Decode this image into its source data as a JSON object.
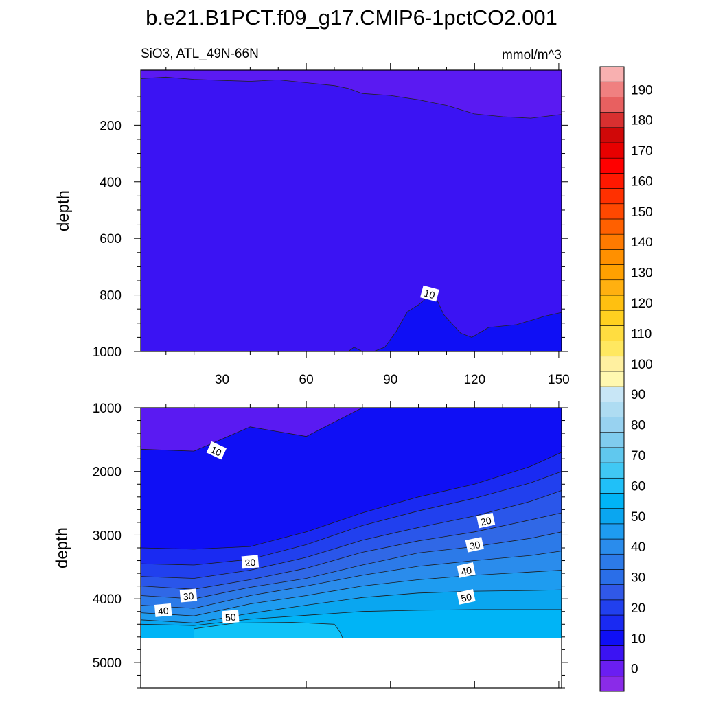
{
  "chart_data": [
    {
      "type": "contour",
      "panel": "upper",
      "title": "b.e21.B1PCT.f09_g17.CMIP6-1pctCO2.001",
      "left_label": "SiO3, ATL_49N-66N",
      "right_label": "mmol/m^3",
      "xlabel": "",
      "ylabel": "depth",
      "xlim": [
        1,
        151
      ],
      "ylim": [
        1000,
        5
      ],
      "x_ticks": [
        30,
        60,
        90,
        120,
        150
      ],
      "y_ticks": [
        200,
        400,
        600,
        800,
        1000
      ],
      "contour_labels": [
        {
          "text": "10",
          "x": 104,
          "y": 795
        }
      ],
      "regions": [
        {
          "level": "0-5",
          "color": "#5a1af2",
          "boundary_depth_by_x": [
            [
              1,
              35
            ],
            [
              10,
              30
            ],
            [
              20,
              38
            ],
            [
              30,
              42
            ],
            [
              40,
              45
            ],
            [
              50,
              40
            ],
            [
              60,
              50
            ],
            [
              70,
              60
            ],
            [
              75,
              70
            ],
            [
              80,
              88
            ],
            [
              90,
              95
            ],
            [
              100,
              110
            ],
            [
              110,
              130
            ],
            [
              120,
              160
            ],
            [
              130,
              170
            ],
            [
              140,
              175
            ],
            [
              151,
              162
            ]
          ]
        },
        {
          "level": "5-10",
          "color": "#3b13f3"
        },
        {
          "level": "10-15",
          "color": "#0f0ff5",
          "boundary_depth_by_x": [
            [
              75,
              1000
            ],
            [
              77,
              985
            ],
            [
              80,
              1000
            ],
            [
              84,
              1000
            ],
            [
              88,
              985
            ],
            [
              92,
              930
            ],
            [
              96,
              860
            ],
            [
              100,
              835
            ],
            [
              103,
              810
            ],
            [
              106,
              805
            ],
            [
              109,
              870
            ],
            [
              115,
              935
            ],
            [
              119,
              950
            ],
            [
              125,
              915
            ],
            [
              135,
              905
            ],
            [
              140,
              890
            ],
            [
              145,
              875
            ],
            [
              151,
              862
            ]
          ]
        }
      ]
    },
    {
      "type": "contour",
      "panel": "lower",
      "xlabel": "",
      "ylabel": "depth",
      "xlim": [
        1,
        151
      ],
      "ylim": [
        5400,
        1000
      ],
      "y_ticks": [
        1000,
        2000,
        3000,
        4000,
        5000
      ],
      "missing_below": 4620,
      "contour_labels": [
        {
          "text": "10",
          "x": 28,
          "y": 1670
        },
        {
          "text": "20",
          "x": 124,
          "y": 2770
        },
        {
          "text": "30",
          "x": 120,
          "y": 3150
        },
        {
          "text": "40",
          "x": 117,
          "y": 3550
        },
        {
          "text": "50",
          "x": 117,
          "y": 3970
        },
        {
          "text": "20",
          "x": 40,
          "y": 3420
        },
        {
          "text": "30",
          "x": 18,
          "y": 3950
        },
        {
          "text": "40",
          "x": 9,
          "y": 4180
        },
        {
          "text": "50",
          "x": 33,
          "y": 4280
        }
      ],
      "x_stops": [
        1,
        20,
        40,
        60,
        80,
        100,
        120,
        140,
        151
      ],
      "contours": [
        {
          "level": 10,
          "depths": [
            1650,
            1680,
            1300,
            1450,
            1000,
            1000,
            1000,
            1000,
            1000
          ]
        },
        {
          "level": 15,
          "depths": [
            3200,
            3220,
            3180,
            2950,
            2650,
            2400,
            2200,
            1920,
            1700
          ]
        },
        {
          "level": 20,
          "depths": [
            3450,
            3470,
            3380,
            3150,
            2850,
            2620,
            2420,
            2180,
            2000
          ]
        },
        {
          "level": 25,
          "depths": [
            3650,
            3680,
            3550,
            3350,
            3080,
            2880,
            2700,
            2470,
            2300
          ]
        },
        {
          "level": 30,
          "depths": [
            3800,
            3850,
            3700,
            3520,
            3270,
            3090,
            2950,
            2760,
            2650
          ]
        },
        {
          "level": 35,
          "depths": [
            3950,
            4000,
            3820,
            3680,
            3470,
            3280,
            3180,
            3050,
            2950
          ]
        },
        {
          "level": 40,
          "depths": [
            4100,
            4150,
            3950,
            3800,
            3630,
            3490,
            3400,
            3320,
            3250
          ]
        },
        {
          "level": 45,
          "depths": [
            4220,
            4270,
            4080,
            3950,
            3800,
            3700,
            3630,
            3580,
            3550
          ]
        },
        {
          "level": 50,
          "depths": [
            4330,
            4380,
            4230,
            4100,
            3980,
            3910,
            3880,
            3870,
            3860
          ]
        },
        {
          "level": 55,
          "depths": [
            4400,
            4420,
            4320,
            4260,
            4200,
            4180,
            4170,
            4170,
            4170
          ]
        }
      ],
      "region_colors": [
        "#5a1af2",
        "#0f0ff5",
        "#1a2af2",
        "#2140ee",
        "#2a56ea",
        "#3068e6",
        "#2c7ae8",
        "#2a8cec",
        "#1e9cf0",
        "#0aa6f0",
        "#00b4f6",
        "#10c2f8"
      ]
    },
    {
      "type": "colorbar",
      "tick_labels": [
        "0",
        "10",
        "20",
        "30",
        "40",
        "50",
        "60",
        "70",
        "80",
        "90",
        "100",
        "110",
        "120",
        "130",
        "140",
        "150",
        "160",
        "170",
        "180",
        "190"
      ],
      "box_values": [
        -5,
        0,
        5,
        10,
        15,
        20,
        25,
        30,
        35,
        40,
        45,
        50,
        55,
        60,
        65,
        70,
        75,
        80,
        85,
        90,
        95,
        100,
        105,
        110,
        115,
        120,
        125,
        130,
        135,
        140,
        145,
        150,
        155,
        160,
        165,
        170,
        175,
        180,
        185,
        190,
        195
      ],
      "colors": [
        "#8a2be8",
        "#6a1ef2",
        "#3b13f3",
        "#0f0ff5",
        "#1a2af2",
        "#2140ee",
        "#3058e8",
        "#2a6ee8",
        "#2c7ae8",
        "#2a8cec",
        "#1e9cf0",
        "#0aa6f0",
        "#00b4f6",
        "#20c0f8",
        "#40c8f4",
        "#60c8ee",
        "#80ccee",
        "#98d2f0",
        "#aedcf2",
        "#c8e6f6",
        "#fff8b0",
        "#fff0a0",
        "#ffe860",
        "#ffdd40",
        "#ffd020",
        "#ffc010",
        "#ffb010",
        "#ffa000",
        "#ff9000",
        "#ff7a00",
        "#ff6000",
        "#ff4800",
        "#ff3000",
        "#ff1800",
        "#ff0000",
        "#e80000",
        "#d00808",
        "#d83030",
        "#e86060",
        "#f08080",
        "#f8b0b0"
      ]
    }
  ]
}
